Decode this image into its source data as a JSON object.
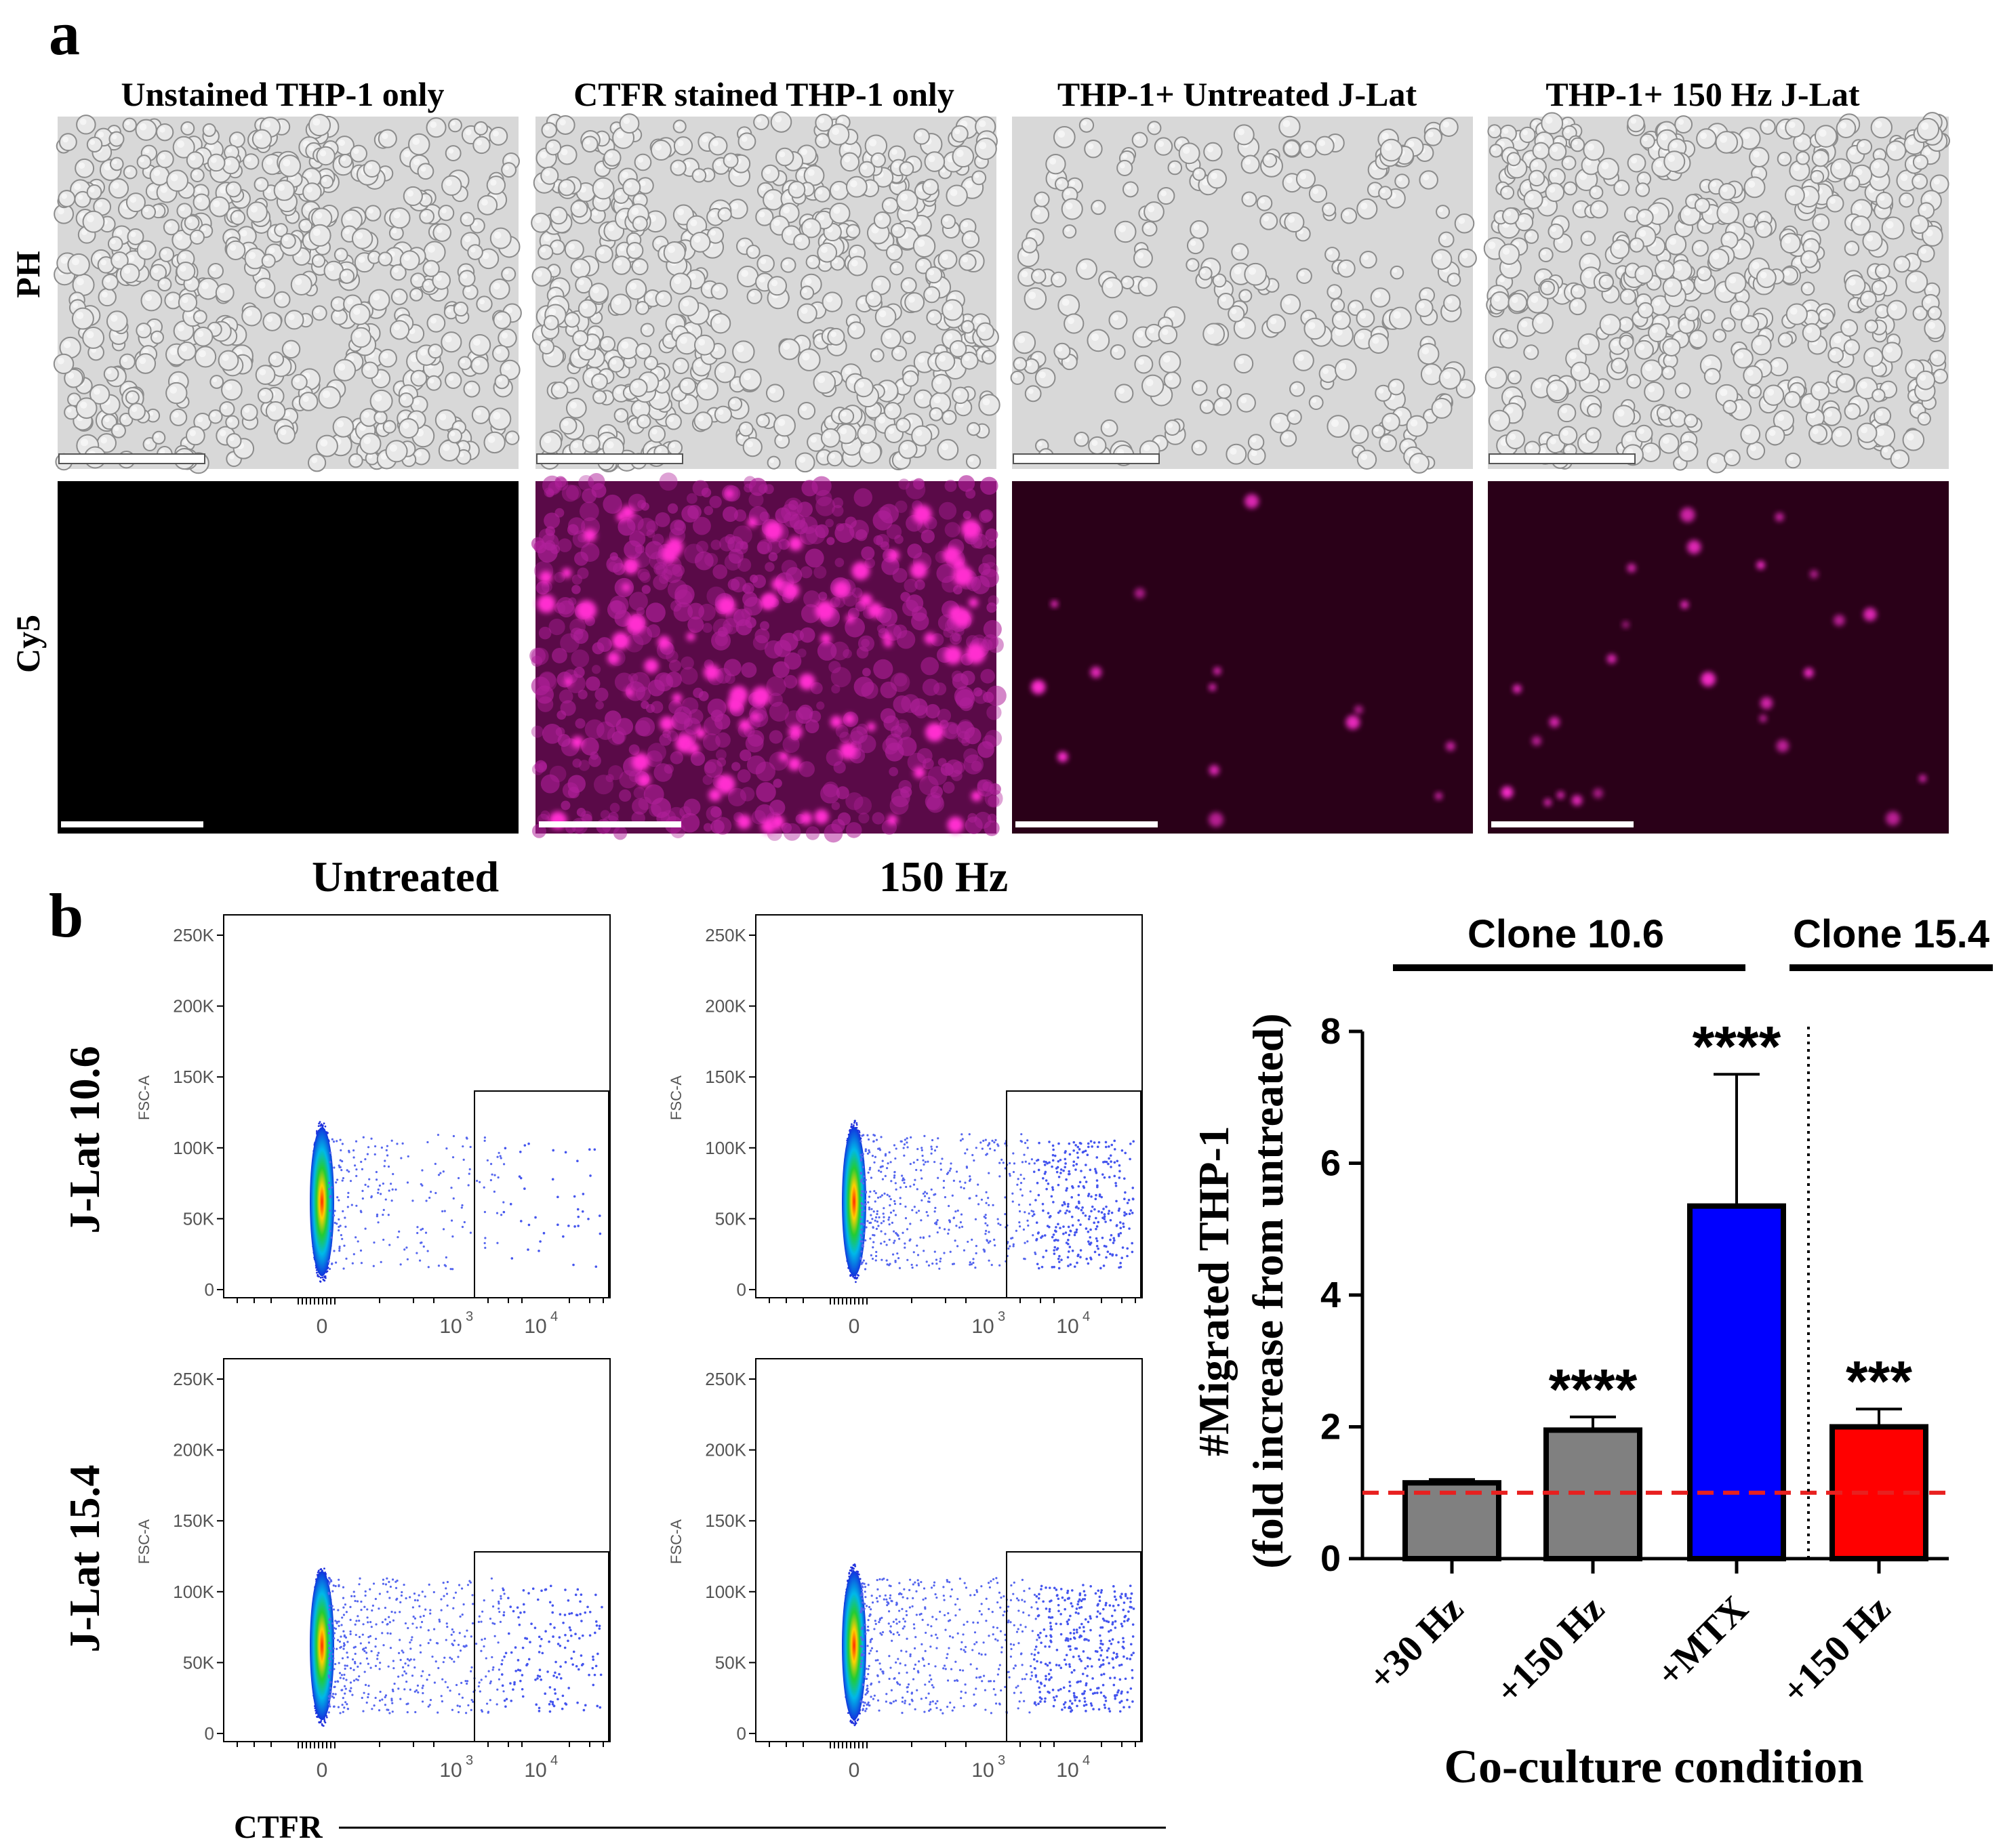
{
  "panel_a": {
    "label": "a",
    "columns": [
      "Unstained THP-1 only",
      "CTFR stained THP-1 only",
      "THP-1+ Untreated J-Lat",
      "THP-1+ 150 Hz J-Lat"
    ],
    "rows": [
      "PH",
      "Cy5"
    ],
    "colors": {
      "cy5_dark": "#2a0018",
      "cy5_blob": "#ff2fd0",
      "ph_bg": "#d8d8d8",
      "ph_cell": "#e8e8e8"
    }
  },
  "panel_b": {
    "label": "b",
    "col_titles": [
      "Untreated",
      "150 Hz"
    ],
    "row_titles": [
      "J-Lat 10.6",
      "J-Lat 15.4"
    ],
    "x_axis_title": "CTFR",
    "flow_y_label": "FSC-A",
    "flow_y_ticks": [
      "250K",
      "200K",
      "150K",
      "100K",
      "50K",
      "0"
    ],
    "flow_y_tick_values": [
      250,
      200,
      150,
      100,
      50,
      0
    ],
    "flow_x_ticks": [
      "0",
      "10",
      "10"
    ],
    "flow_x_tick_exponents": [
      "",
      "3",
      "4"
    ],
    "flow_plots": [
      {
        "row": 0,
        "col": 0,
        "gated_events": 40
      },
      {
        "row": 0,
        "col": 1,
        "gated_events": 320
      },
      {
        "row": 1,
        "col": 0,
        "gated_events": 160
      },
      {
        "row": 1,
        "col": 1,
        "gated_events": 360
      }
    ]
  },
  "chart_data": {
    "type": "bar",
    "categories": [
      "+30 Hz",
      "+150 Hz",
      "+MTX",
      "+150 Hz"
    ],
    "values": [
      1.15,
      1.95,
      5.35,
      2.0
    ],
    "errors": [
      0.05,
      0.2,
      2.0,
      0.27
    ],
    "significance": [
      "",
      "****",
      "****",
      "***"
    ],
    "bar_colors": [
      "#808080",
      "#808080",
      "#0000ff",
      "#ff0000"
    ],
    "groups": [
      {
        "name": "Clone 10.6",
        "categories": [
          0,
          1,
          2
        ]
      },
      {
        "name": "Clone 15.4",
        "categories": [
          3
        ]
      }
    ],
    "ylabel_line1": "#Migrated THP-1",
    "ylabel_line2": "(fold increase from untreated)",
    "xlabel": "Co-culture condition",
    "ylim": [
      0,
      8
    ],
    "yticks": [
      0,
      2,
      4,
      6,
      8
    ],
    "reference_line": 1.0,
    "reference_color": "#e8201f"
  }
}
